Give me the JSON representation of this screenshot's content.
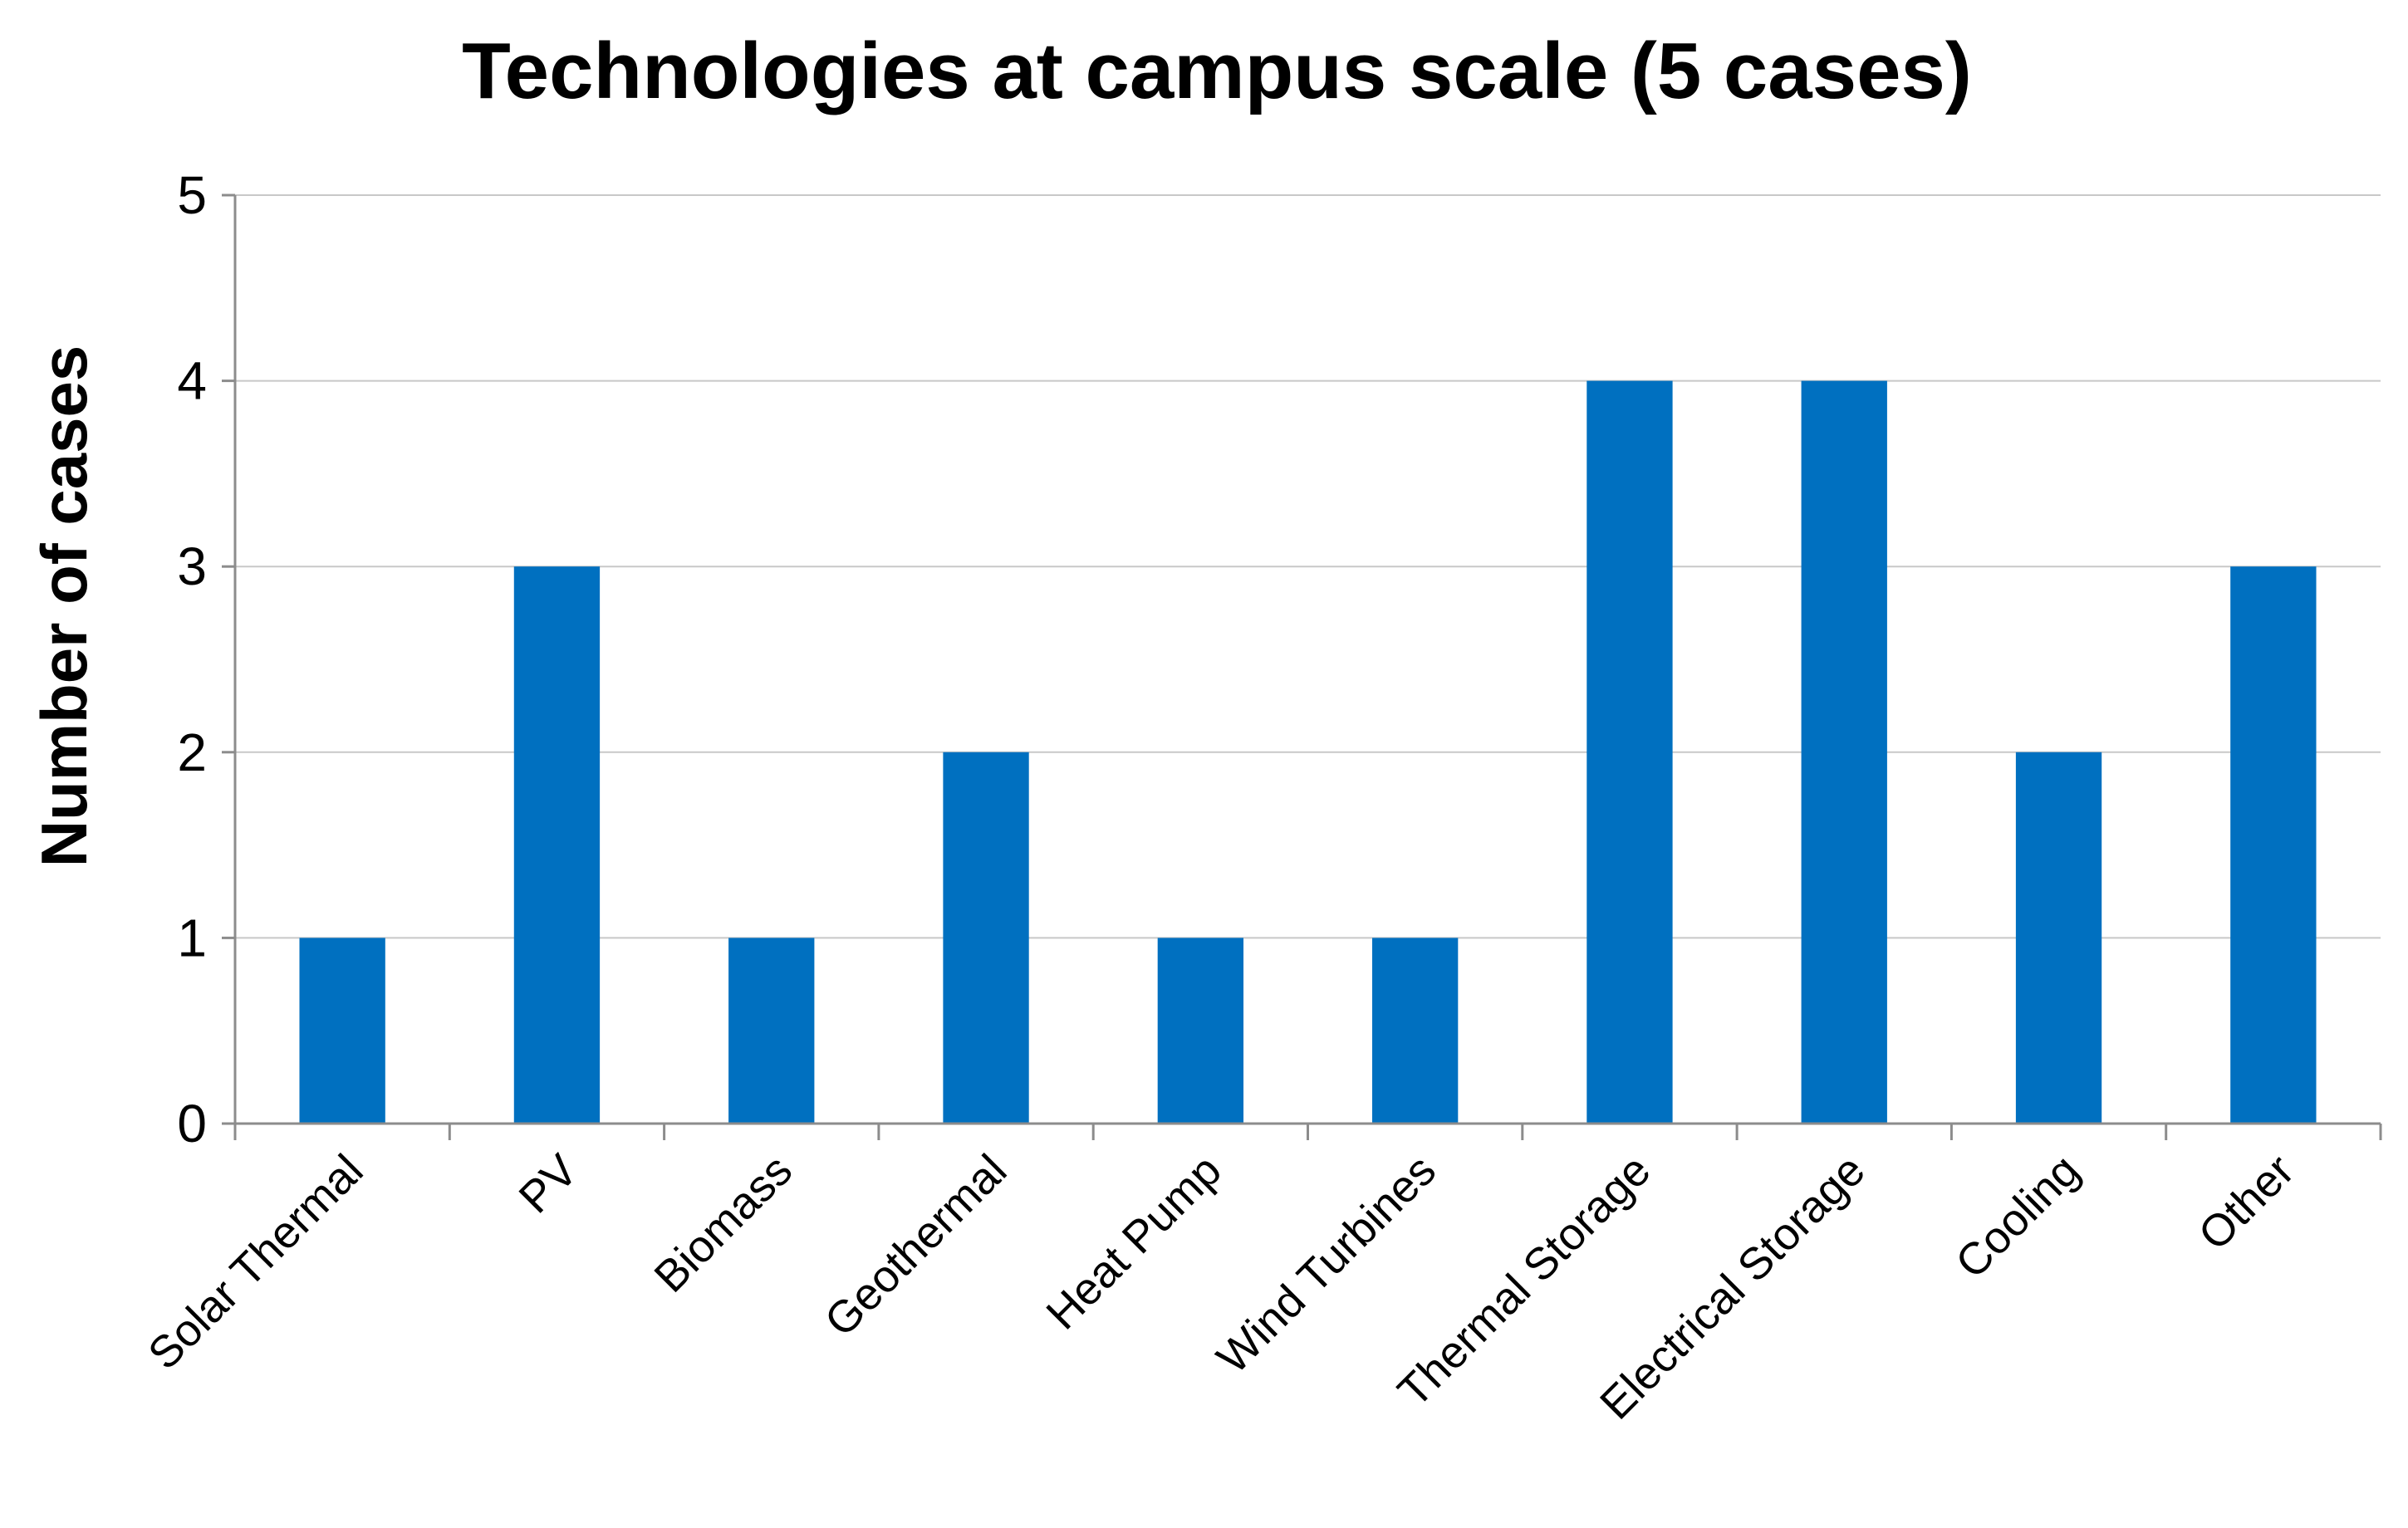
{
  "chart_data": {
    "type": "bar",
    "title": "Technologies at campus scale (5 cases)",
    "xlabel": "",
    "ylabel": "Number of cases",
    "categories": [
      "Solar Thermal",
      "PV",
      "Biomass",
      "Geothermal",
      "Heat Pump",
      "Wind Turbines",
      "Thermal Storage",
      "Electrical Storage",
      "Cooling",
      "Other"
    ],
    "values": [
      1,
      3,
      1,
      2,
      1,
      1,
      4,
      4,
      2,
      3
    ],
    "ylim": [
      0,
      5
    ],
    "yticks": [
      "0",
      "1",
      "2",
      "3",
      "4",
      "5"
    ],
    "grid": true,
    "legend": "none",
    "bar_color": "#0070c0"
  }
}
